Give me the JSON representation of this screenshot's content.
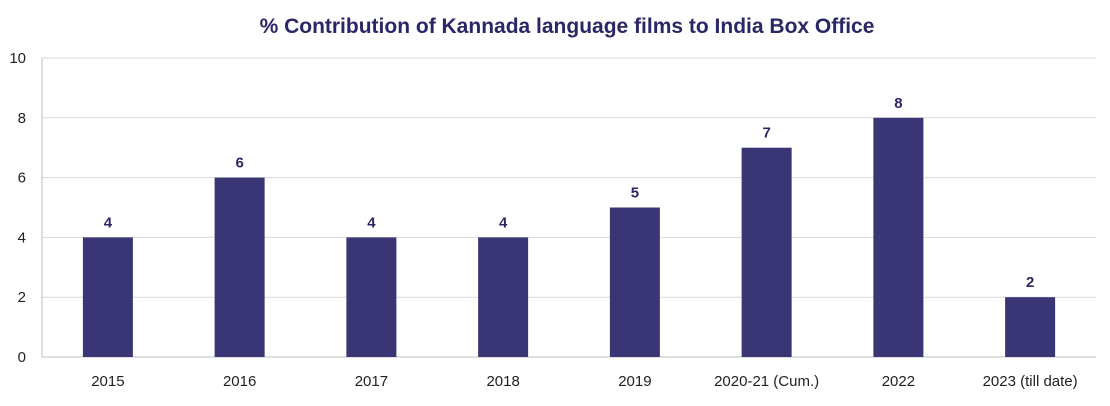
{
  "chart_data": {
    "type": "bar",
    "title": "% Contribution of Kannada language films to India Box Office",
    "xlabel": "",
    "ylabel": "",
    "categories": [
      "2015",
      "2016",
      "2017",
      "2018",
      "2019",
      "2020-21 (Cum.)",
      "2022",
      "2023 (till date)"
    ],
    "values": [
      4,
      6,
      4,
      4,
      5,
      7,
      8,
      2
    ],
    "value_labels": [
      "4",
      "6",
      "4",
      "4",
      "5",
      "7",
      "8",
      "2"
    ],
    "ylim": [
      0,
      10
    ],
    "yticks": [
      "0",
      "2",
      "4",
      "6",
      "8",
      "10"
    ],
    "grid": true,
    "legend": "none"
  },
  "colors": {
    "bar": "#3a3574",
    "title": "#2b2766",
    "data_label": "#2b2766",
    "grid": "#d9d9d9",
    "axis": "#bfbfbf"
  }
}
